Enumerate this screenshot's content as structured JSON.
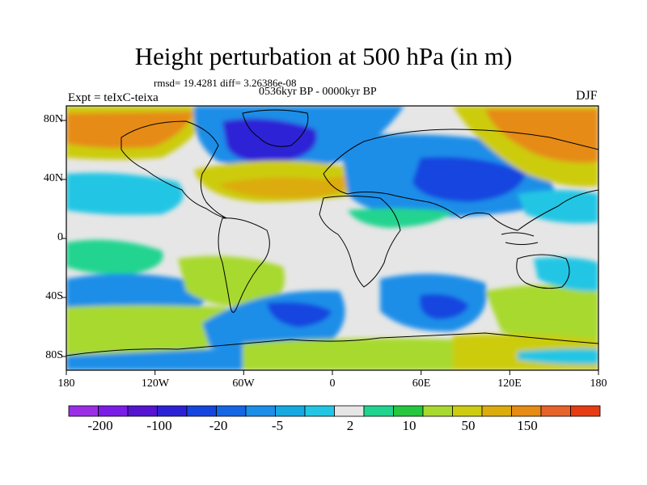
{
  "title": "Height perturbation at 500 hPa (in m)",
  "subtitle_rmsd": "rmsd= 19.4281 diff= 3.26386e-08",
  "subtitle_period": "0536kyr BP - 0000kyr BP",
  "expt_label": "Expt = teIxC-teixa",
  "season": "DJF",
  "y_ticks": [
    "80N",
    "40N",
    "0",
    "40S",
    "80S"
  ],
  "x_ticks": [
    "180",
    "120W",
    "60W",
    "0",
    "60E",
    "120E",
    "180"
  ],
  "colorbar": {
    "colors": [
      "#9a2fe6",
      "#7a1de6",
      "#5414d0",
      "#2d21d6",
      "#1545df",
      "#1566e5",
      "#1b8ee8",
      "#14a9e0",
      "#22c6e4",
      "#e6e6e6",
      "#20d48f",
      "#24c73e",
      "#a8d92e",
      "#cccc10",
      "#dcab0e",
      "#e68b14",
      "#e6642a",
      "#e53c14"
    ],
    "labels": [
      "-200",
      "-100",
      "-20",
      "-5",
      "2",
      "10",
      "50",
      "150"
    ]
  },
  "map_colors": {
    "ocean_neutral": "#e6e6e6",
    "deep_low": "#5414d0",
    "low": "#1545df",
    "mid_low": "#1b8ee8",
    "light_low": "#22c6e4",
    "light_high": "#a8d92e",
    "mid_high": "#cccc10",
    "high": "#e68b14"
  }
}
